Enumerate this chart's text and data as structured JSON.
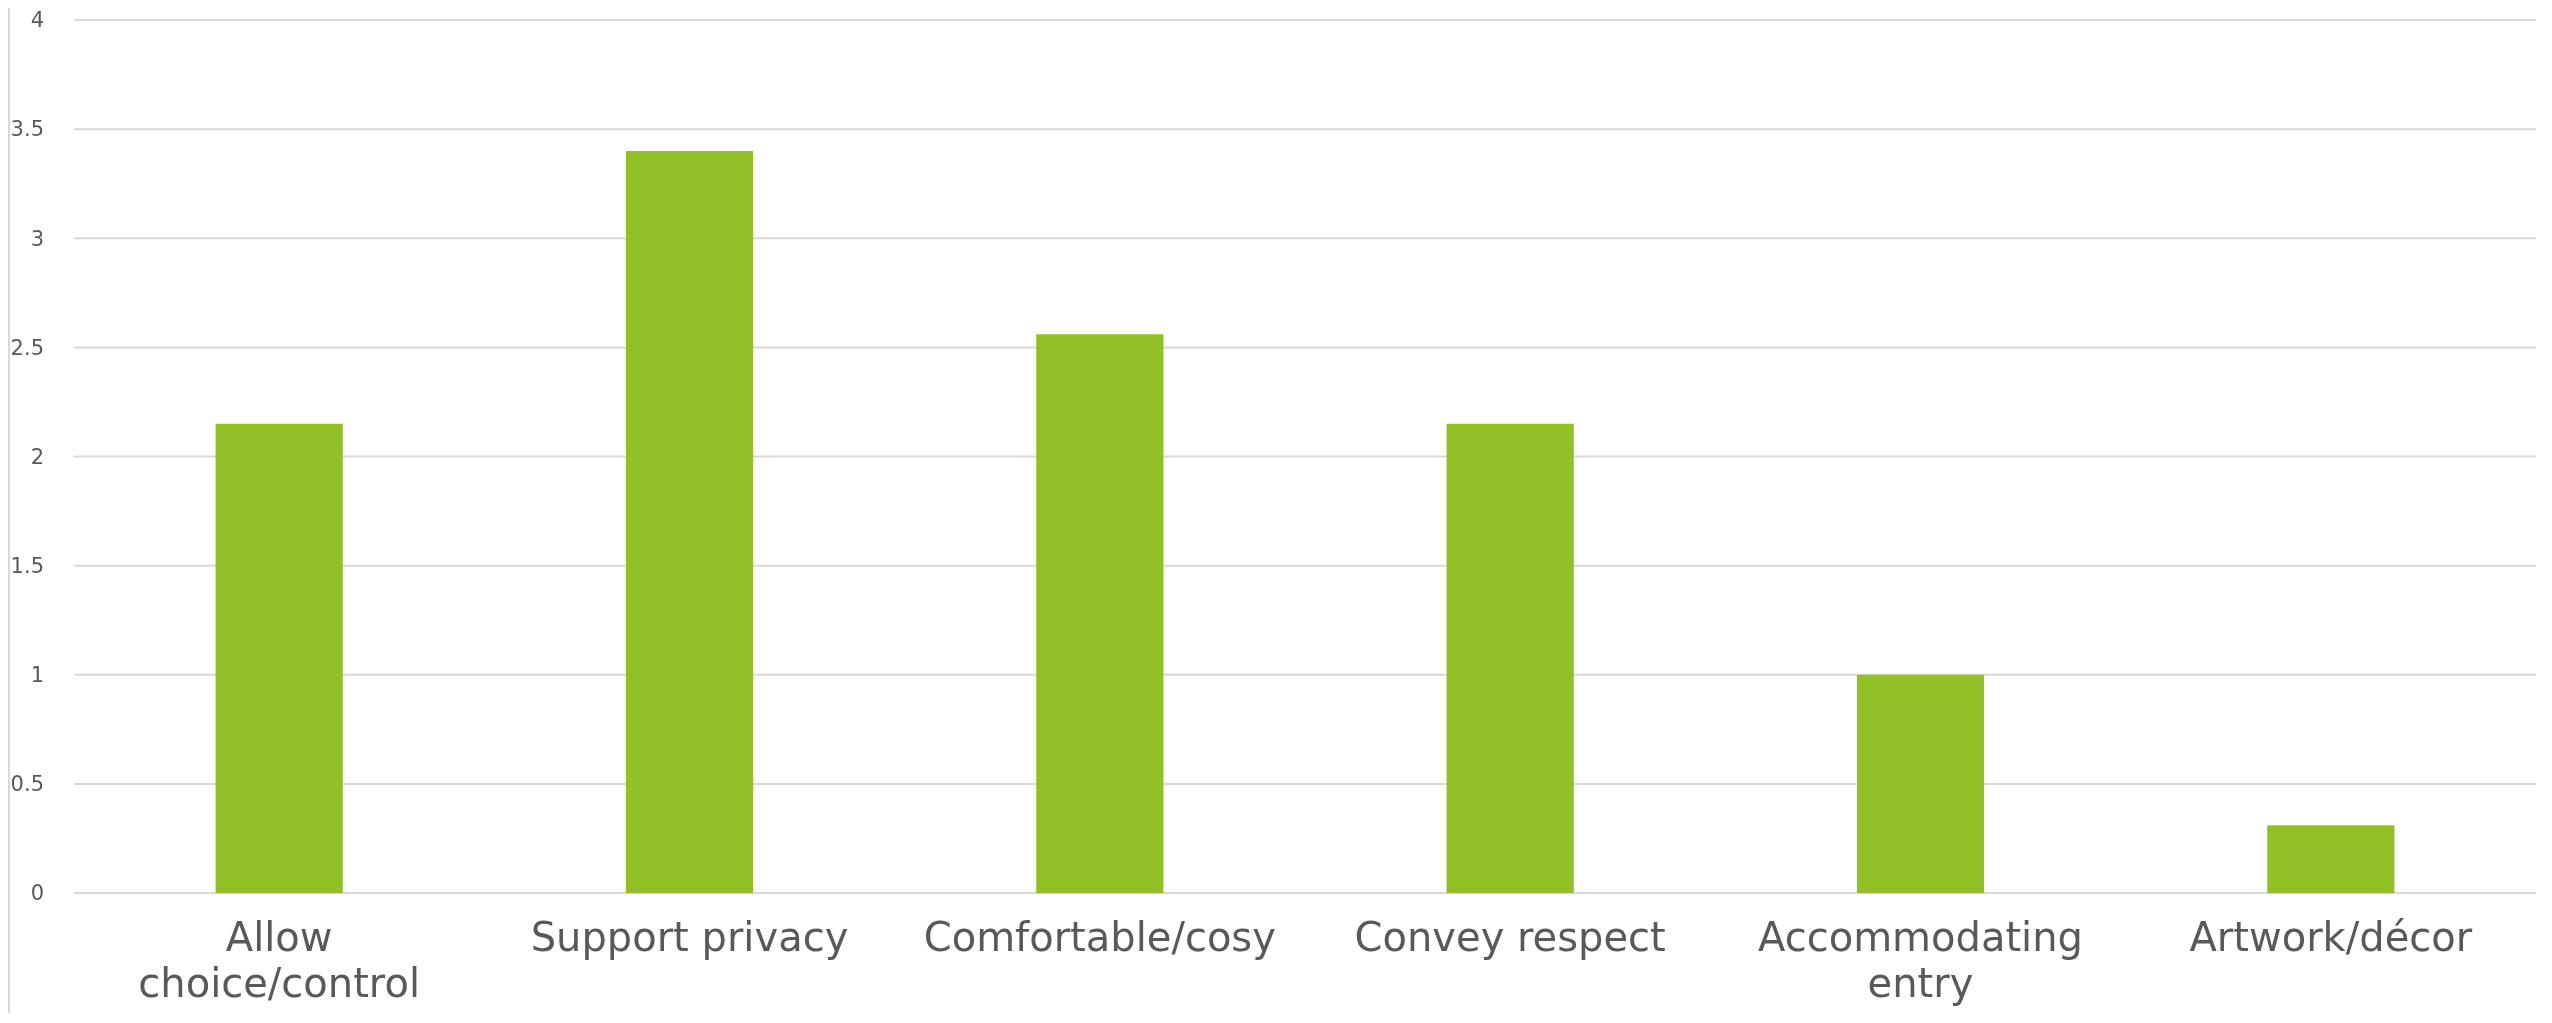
{
  "chart_data": {
    "type": "bar",
    "categories": [
      "Allow choice/control",
      "Support privacy",
      "Comfortable/cosy",
      "Convey respect",
      "Accommodating entry",
      "Artwork/décor"
    ],
    "values": [
      2.15,
      3.4,
      2.56,
      2.15,
      1,
      0.31
    ],
    "color": "#92c127",
    "ylim": [
      0,
      4
    ],
    "yticks": [
      0,
      0.5,
      1,
      1.5,
      2,
      2.5,
      3,
      3.5,
      4
    ],
    "grid": "y"
  }
}
